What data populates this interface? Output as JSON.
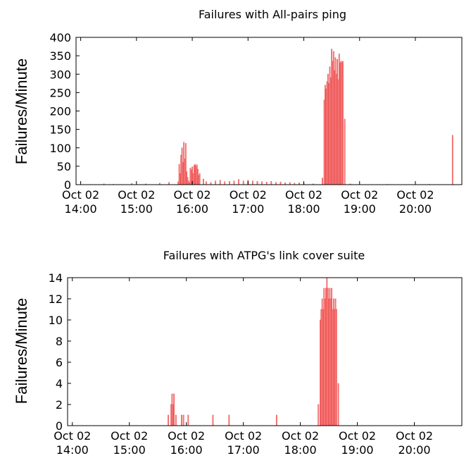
{
  "chart_data": [
    {
      "type": "bar",
      "title": "Failures with All-pairs ping",
      "xlabel": "",
      "ylabel": "Failures/Minute",
      "ylim": [
        0,
        400
      ],
      "yticks": [
        "0",
        "50",
        "100",
        "150",
        "200",
        "250",
        "300",
        "350",
        "400"
      ],
      "xlim": [
        "13:55",
        "20:50"
      ],
      "xticks": [
        {
          "line1": "Oct 02",
          "line2": "14:00",
          "t": "14:00"
        },
        {
          "line1": "Oct 02",
          "line2": "15:00",
          "t": "15:00"
        },
        {
          "line1": "Oct 02",
          "line2": "16:00",
          "t": "16:00"
        },
        {
          "line1": "Oct 02",
          "line2": "17:00",
          "t": "17:00"
        },
        {
          "line1": "Oct 02",
          "line2": "18:00",
          "t": "18:00"
        },
        {
          "line1": "Oct 02",
          "line2": "19:00",
          "t": "19:00"
        },
        {
          "line1": "Oct 02",
          "line2": "20:00",
          "t": "20:00"
        }
      ],
      "bar_color": "#ff9a9a",
      "bar_edge": "#e94848",
      "grid": false,
      "points": [
        {
          "t": "14:25",
          "v": 2
        },
        {
          "t": "14:35",
          "v": 1
        },
        {
          "t": "14:55",
          "v": 3
        },
        {
          "t": "15:10",
          "v": 2
        },
        {
          "t": "15:25",
          "v": 4
        },
        {
          "t": "15:35",
          "v": 6
        },
        {
          "t": "15:45",
          "v": 8
        },
        {
          "t": "15:46",
          "v": 55
        },
        {
          "t": "15:47",
          "v": 30
        },
        {
          "t": "15:48",
          "v": 80
        },
        {
          "t": "15:49",
          "v": 100
        },
        {
          "t": "15:50",
          "v": 60
        },
        {
          "t": "15:51",
          "v": 115
        },
        {
          "t": "15:52",
          "v": 70
        },
        {
          "t": "15:53",
          "v": 112
        },
        {
          "t": "15:54",
          "v": 35
        },
        {
          "t": "15:55",
          "v": 20
        },
        {
          "t": "15:56",
          "v": 10
        },
        {
          "t": "15:57",
          "v": 5
        },
        {
          "t": "15:58",
          "v": 45
        },
        {
          "t": "15:59",
          "v": 40
        },
        {
          "t": "16:00",
          "v": 48
        },
        {
          "t": "16:01",
          "v": 30
        },
        {
          "t": "16:02",
          "v": 52
        },
        {
          "t": "16:03",
          "v": 55
        },
        {
          "t": "16:04",
          "v": 50
        },
        {
          "t": "16:05",
          "v": 54
        },
        {
          "t": "16:06",
          "v": 42
        },
        {
          "t": "16:07",
          "v": 25
        },
        {
          "t": "16:08",
          "v": 30
        },
        {
          "t": "16:12",
          "v": 15
        },
        {
          "t": "16:15",
          "v": 8
        },
        {
          "t": "16:20",
          "v": 6
        },
        {
          "t": "16:25",
          "v": 10
        },
        {
          "t": "16:30",
          "v": 12
        },
        {
          "t": "16:35",
          "v": 8
        },
        {
          "t": "16:40",
          "v": 9
        },
        {
          "t": "16:45",
          "v": 10
        },
        {
          "t": "16:50",
          "v": 14
        },
        {
          "t": "16:55",
          "v": 10
        },
        {
          "t": "17:00",
          "v": 12
        },
        {
          "t": "17:05",
          "v": 10
        },
        {
          "t": "17:10",
          "v": 9
        },
        {
          "t": "17:15",
          "v": 8
        },
        {
          "t": "17:20",
          "v": 7
        },
        {
          "t": "17:25",
          "v": 9
        },
        {
          "t": "17:30",
          "v": 6
        },
        {
          "t": "17:35",
          "v": 7
        },
        {
          "t": "17:40",
          "v": 5
        },
        {
          "t": "17:45",
          "v": 6
        },
        {
          "t": "17:50",
          "v": 4
        },
        {
          "t": "17:55",
          "v": 5
        },
        {
          "t": "18:00",
          "v": 3
        },
        {
          "t": "18:10",
          "v": 2
        },
        {
          "t": "18:20",
          "v": 18
        },
        {
          "t": "18:22",
          "v": 230
        },
        {
          "t": "18:23",
          "v": 270
        },
        {
          "t": "18:24",
          "v": 260
        },
        {
          "t": "18:25",
          "v": 280
        },
        {
          "t": "18:26",
          "v": 300
        },
        {
          "t": "18:27",
          "v": 275
        },
        {
          "t": "18:28",
          "v": 320
        },
        {
          "t": "18:29",
          "v": 290
        },
        {
          "t": "18:30",
          "v": 368
        },
        {
          "t": "18:31",
          "v": 335
        },
        {
          "t": "18:32",
          "v": 362
        },
        {
          "t": "18:33",
          "v": 310
        },
        {
          "t": "18:34",
          "v": 345
        },
        {
          "t": "18:35",
          "v": 300
        },
        {
          "t": "18:36",
          "v": 340
        },
        {
          "t": "18:37",
          "v": 285
        },
        {
          "t": "18:38",
          "v": 355
        },
        {
          "t": "18:39",
          "v": 330
        },
        {
          "t": "18:40",
          "v": 335
        },
        {
          "t": "18:41",
          "v": 332
        },
        {
          "t": "18:42",
          "v": 335
        },
        {
          "t": "18:44",
          "v": 178
        },
        {
          "t": "18:50",
          "v": 2
        },
        {
          "t": "19:30",
          "v": 1
        },
        {
          "t": "20:15",
          "v": 1
        },
        {
          "t": "20:40",
          "v": 134
        }
      ]
    },
    {
      "type": "bar",
      "title": "Failures with ATPG's link cover suite",
      "xlabel": "",
      "ylabel": "Failures/Minute",
      "ylim": [
        0,
        14
      ],
      "yticks": [
        "0",
        "2",
        "4",
        "6",
        "8",
        "10",
        "12",
        "14"
      ],
      "xlim": [
        "13:55",
        "20:50"
      ],
      "xticks": [
        {
          "line1": "Oct 02",
          "line2": "14:00",
          "t": "14:00"
        },
        {
          "line1": "Oct 02",
          "line2": "15:00",
          "t": "15:00"
        },
        {
          "line1": "Oct 02",
          "line2": "16:00",
          "t": "16:00"
        },
        {
          "line1": "Oct 02",
          "line2": "17:00",
          "t": "17:00"
        },
        {
          "line1": "Oct 02",
          "line2": "18:00",
          "t": "18:00"
        },
        {
          "line1": "Oct 02",
          "line2": "19:00",
          "t": "19:00"
        },
        {
          "line1": "Oct 02",
          "line2": "20:00",
          "t": "20:00"
        }
      ],
      "bar_color": "#ff9a9a",
      "bar_edge": "#e94848",
      "grid": false,
      "points": [
        {
          "t": "15:41",
          "v": 1
        },
        {
          "t": "15:44",
          "v": 2
        },
        {
          "t": "15:45",
          "v": 3
        },
        {
          "t": "15:46",
          "v": 2
        },
        {
          "t": "15:47",
          "v": 3
        },
        {
          "t": "15:49",
          "v": 1
        },
        {
          "t": "15:55",
          "v": 1
        },
        {
          "t": "15:57",
          "v": 1
        },
        {
          "t": "16:02",
          "v": 1
        },
        {
          "t": "16:28",
          "v": 1
        },
        {
          "t": "16:45",
          "v": 1
        },
        {
          "t": "17:35",
          "v": 1
        },
        {
          "t": "18:19",
          "v": 2
        },
        {
          "t": "18:21",
          "v": 10
        },
        {
          "t": "18:22",
          "v": 11
        },
        {
          "t": "18:23",
          "v": 12
        },
        {
          "t": "18:24",
          "v": 11
        },
        {
          "t": "18:25",
          "v": 13
        },
        {
          "t": "18:26",
          "v": 12
        },
        {
          "t": "18:27",
          "v": 13
        },
        {
          "t": "18:28",
          "v": 14
        },
        {
          "t": "18:29",
          "v": 13
        },
        {
          "t": "18:30",
          "v": 12
        },
        {
          "t": "18:31",
          "v": 13
        },
        {
          "t": "18:32",
          "v": 12
        },
        {
          "t": "18:33",
          "v": 13
        },
        {
          "t": "18:34",
          "v": 11
        },
        {
          "t": "18:35",
          "v": 12
        },
        {
          "t": "18:36",
          "v": 11
        },
        {
          "t": "18:37",
          "v": 12
        },
        {
          "t": "18:38",
          "v": 11
        },
        {
          "t": "18:40",
          "v": 4
        }
      ]
    }
  ]
}
